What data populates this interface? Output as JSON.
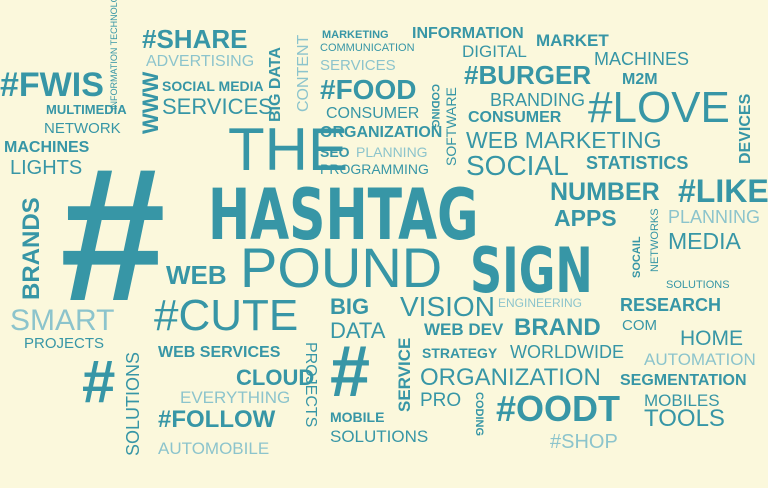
{
  "palette": {
    "background": "#fbf8dc",
    "primary": "#3796a6",
    "light": "#8cc4cc"
  },
  "words": {
    "hash_big": "#",
    "the": "THE",
    "hashtag": "HASHTAG",
    "pound": "POUND",
    "sign": "SIGN",
    "fwis": "#FWIS",
    "share": "#SHARE",
    "advertising": "ADVERTISING",
    "social_media": "SOCIAL MEDIA",
    "services": "SERVICES",
    "multimedia": "MULTIMEDIA",
    "network": "NETWORK",
    "machines_left": "MACHINES",
    "lights": "LIGHTS",
    "information_technology": "INFORMATION TECHNOLOGY",
    "www": "WWW",
    "big_data_vertical": "BIG DATA",
    "content": "CONTENT",
    "marketing": "MARKETING",
    "communication": "COMMUNICATION",
    "services_top": "SERVICES",
    "information": "INFORMATION",
    "digital": "DIGITAL",
    "market": "MARKET",
    "machines_right": "MACHINES",
    "m2m": "M2M",
    "food": "#FOOD",
    "consumer_top": "CONSUMER",
    "coding_top": "CODING",
    "software": "SOFTWARE",
    "burger": "#BURGER",
    "branding": "BRANDING",
    "consumer_right": "CONSUMER",
    "love": "#LOVE",
    "devices": "DEVICES",
    "organization_top": "ORGANIZATION",
    "seo": "SEO",
    "planning_top": "PLANNING",
    "programming": "PROGRAMMING",
    "web_marketing": "WEB MARKETING",
    "social": "SOCIAL",
    "statistics": "STATISTICS",
    "number": "NUMBER",
    "like": "#LIKE",
    "apps": "APPS",
    "socail": "SOCAIL",
    "networks": "NETWORKS",
    "planning_right": "PLANNING",
    "media": "MEDIA",
    "solutions_right": "SOLUTIONS",
    "brands": "BRANDS",
    "web": "WEB",
    "smart": "SMART",
    "projects_left": "PROJECTS",
    "cute": "#CUTE",
    "big": "BIG",
    "data": "DATA",
    "vision": "VISION",
    "engineering": "ENGINEERING",
    "research": "RESEARCH",
    "web_dev": "WEB DEV",
    "brand": "BRAND",
    "com": "COM",
    "home": "HOME",
    "automation": "AUTOMATION",
    "web_services": "WEB SERVICES",
    "projects_vertical": "PROJECTS",
    "strategy": "STRATEGY",
    "worldwide": "WORLDWIDE",
    "hash_small": "#",
    "cloud": "CLOUD",
    "hash_mid": "#",
    "service": "SERVICE",
    "organization_bottom": "ORGANIZATION",
    "segmentation": "SEGMENTATION",
    "solutions_vertical": "SOLUTIONS",
    "everything": "EVERYTHING",
    "follow": "#FOLLOW",
    "automobile": "AUTOMOBILE",
    "mobile": "MOBILE",
    "solutions_bottom": "SOLUTIONS",
    "pro": "PRO",
    "coding_bottom": "CODING",
    "oodt": "#OODT",
    "mobiles": "MOBILES",
    "tools": "TOOLS",
    "shop": "#SHOP"
  }
}
